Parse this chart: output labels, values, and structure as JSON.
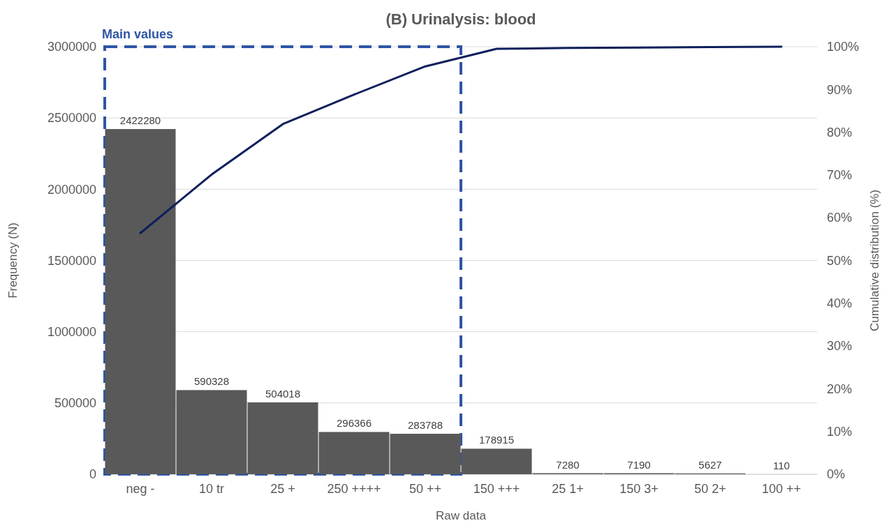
{
  "chart_data": {
    "type": "bar",
    "title": "(B) Urinalysis: blood",
    "xlabel": "Raw data",
    "ylabel": "Frequency (N)",
    "y2label": "Cumulative distribution (%)",
    "categories": [
      "neg -",
      "10 tr",
      "25 +",
      "250 ++++",
      "50 ++",
      "150 +++",
      "25 1+",
      "150 3+",
      "50 2+",
      "100 ++"
    ],
    "series": [
      {
        "color": "#595959",
        "values": [
          2422280,
          590328,
          504018,
          296366,
          283788,
          178915,
          7280,
          7190,
          5627,
          110
        ],
        "value_labels": [
          "2422280",
          "590328",
          "504018",
          "296366",
          "283788",
          "178915",
          "7280",
          "7190",
          "5627",
          "110"
        ]
      },
      {
        "type": "line",
        "axis": "y2",
        "color": "#0d1f5c",
        "values": [
          56.4,
          70.1,
          81.9,
          88.8,
          95.4,
          99.5,
          99.7,
          99.8,
          99.9,
          100
        ]
      }
    ],
    "annotations": [
      "Main values"
    ],
    "ylim": [
      0,
      3000000
    ],
    "yticks": [
      0,
      500000,
      1000000,
      1500000,
      2000000,
      2500000,
      3000000
    ],
    "y2lim": [
      0,
      100
    ],
    "y2ticks": [
      {
        "value": 0,
        "label": "0%"
      },
      {
        "value": 10,
        "label": "10%"
      },
      {
        "value": 20,
        "label": "20%"
      },
      {
        "value": 30,
        "label": "30%"
      },
      {
        "value": 40,
        "label": "40%"
      },
      {
        "value": 50,
        "label": "50%"
      },
      {
        "value": 60,
        "label": "60%"
      },
      {
        "value": 70,
        "label": "70%"
      },
      {
        "value": 80,
        "label": "80%"
      },
      {
        "value": 90,
        "label": "90%"
      },
      {
        "value": 100,
        "label": "100%"
      }
    ],
    "grid": "y"
  }
}
